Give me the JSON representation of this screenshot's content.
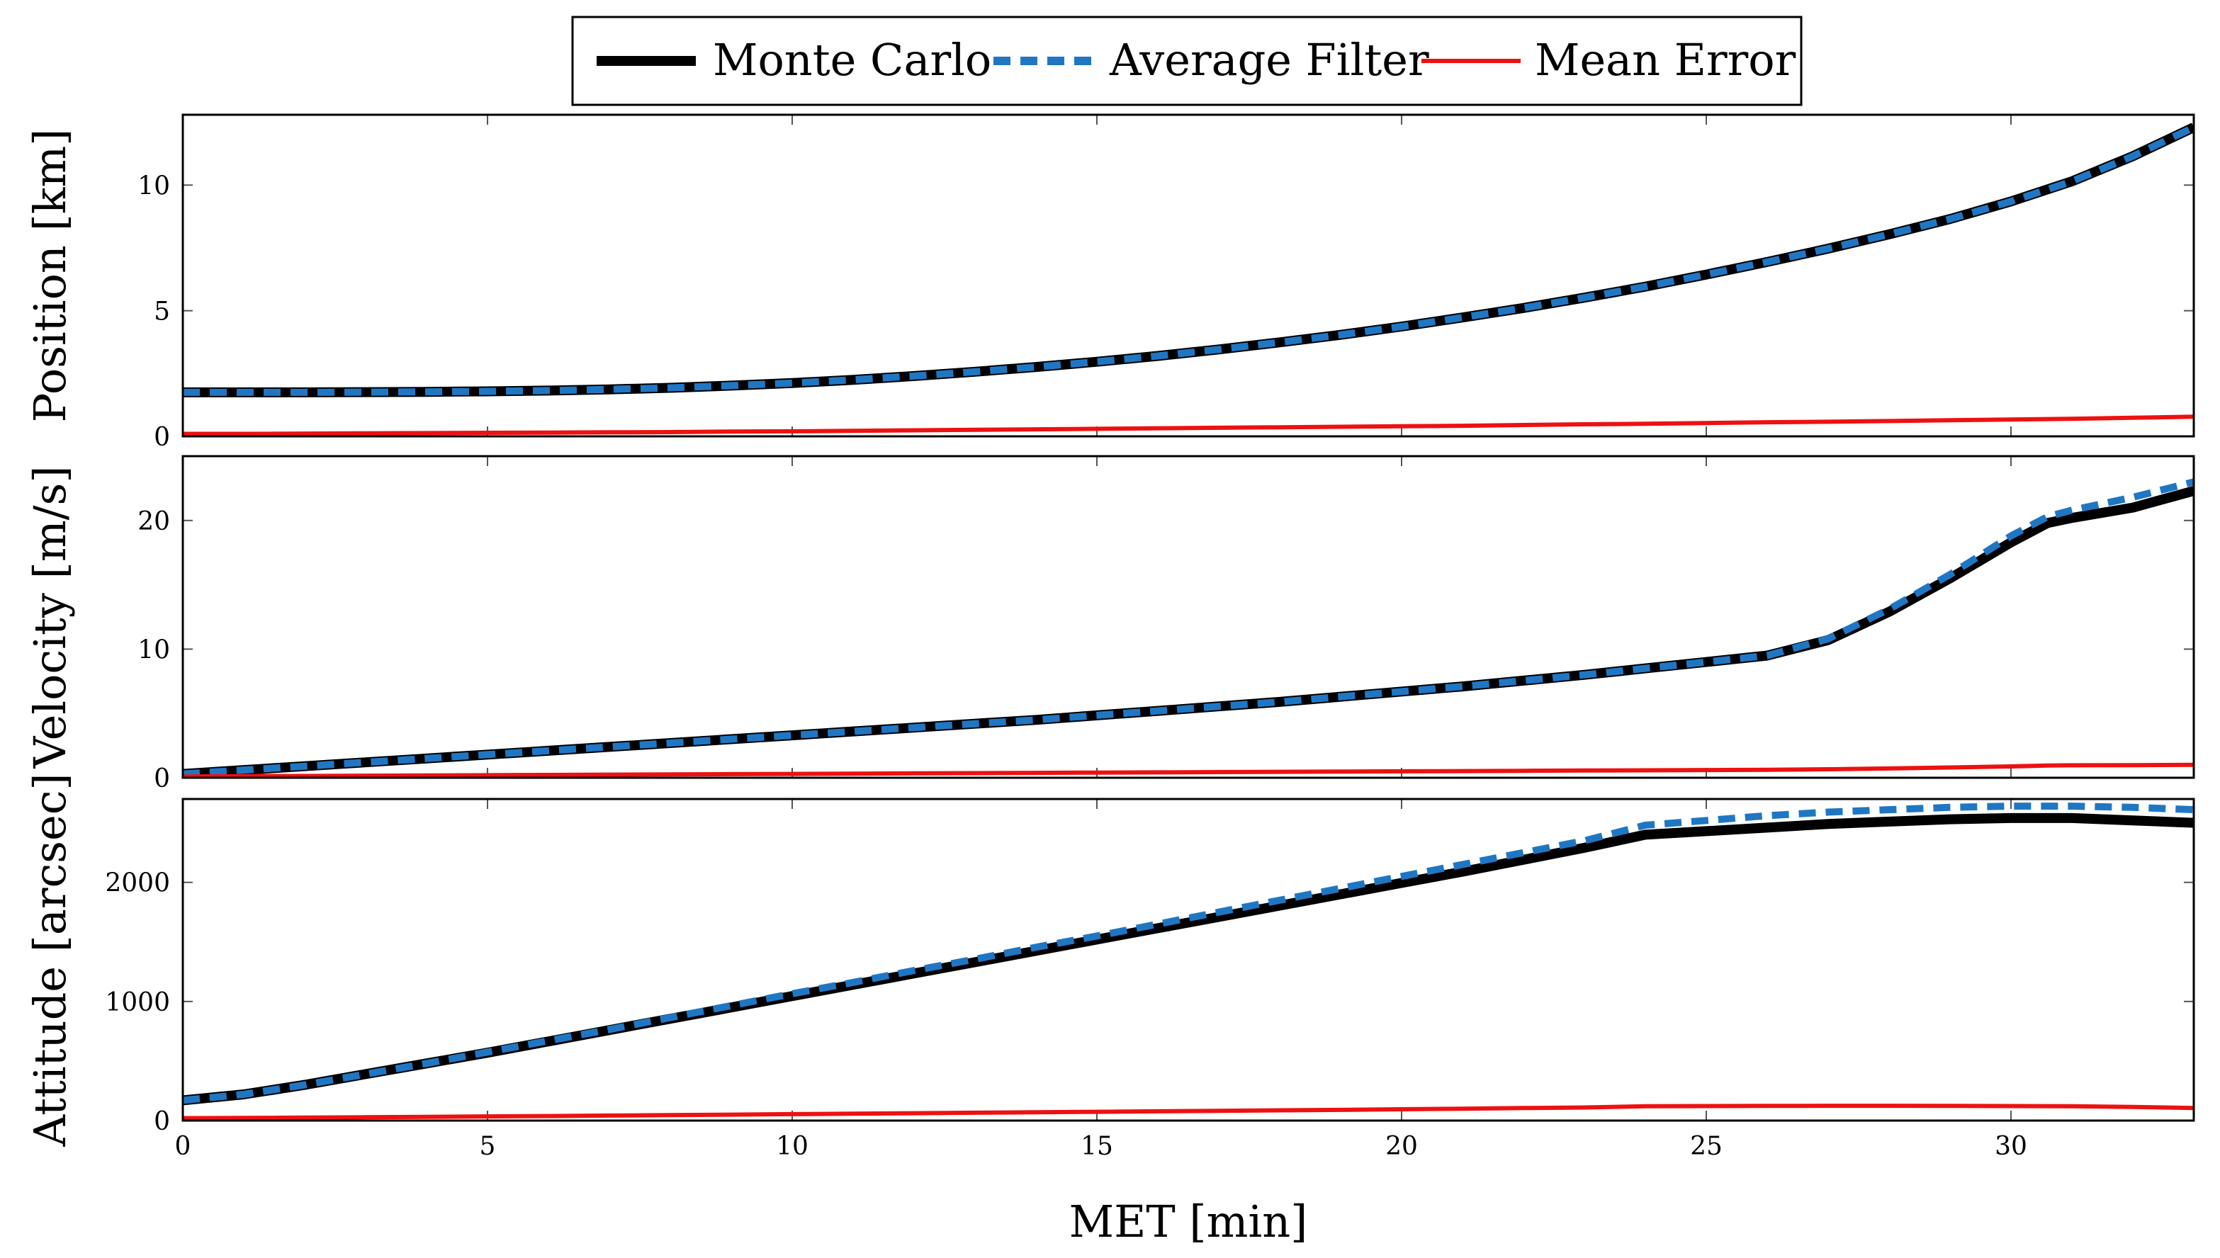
{
  "legend": {
    "entries": [
      {
        "label": "Monte Carlo",
        "color": "#000000",
        "style": "solid-thick"
      },
      {
        "label": "Average Filter",
        "color": "#1f77c4",
        "style": "dashed"
      },
      {
        "label": "Mean Error",
        "color": "#ee1111",
        "style": "solid"
      }
    ]
  },
  "xlabel": "MET [min]",
  "chart_data": [
    {
      "type": "line",
      "ylabel": "Position [km]",
      "xlim": [
        0,
        33
      ],
      "ylim": [
        0,
        12.8
      ],
      "xticks": [
        0,
        5,
        10,
        15,
        20,
        25,
        30
      ],
      "yticks": [
        0,
        5,
        10
      ],
      "x": [
        0,
        1,
        2,
        3,
        4,
        5,
        6,
        7,
        8,
        9,
        10,
        11,
        12,
        13,
        14,
        15,
        16,
        17,
        18,
        19,
        20,
        21,
        22,
        23,
        24,
        25,
        26,
        27,
        28,
        29,
        30,
        31,
        32,
        33
      ],
      "series": [
        {
          "name": "Monte Carlo",
          "values": [
            1.75,
            1.75,
            1.75,
            1.76,
            1.77,
            1.79,
            1.82,
            1.87,
            1.93,
            2.02,
            2.12,
            2.25,
            2.4,
            2.57,
            2.76,
            2.97,
            3.2,
            3.46,
            3.74,
            4.04,
            4.37,
            4.73,
            5.11,
            5.52,
            5.96,
            6.44,
            6.94,
            7.47,
            8.04,
            8.65,
            9.35,
            10.15,
            11.15,
            12.3
          ]
        },
        {
          "name": "Average Filter",
          "values": [
            1.75,
            1.75,
            1.75,
            1.76,
            1.77,
            1.79,
            1.82,
            1.87,
            1.93,
            2.02,
            2.12,
            2.25,
            2.4,
            2.57,
            2.76,
            2.97,
            3.2,
            3.46,
            3.74,
            4.04,
            4.37,
            4.73,
            5.11,
            5.52,
            5.96,
            6.44,
            6.94,
            7.47,
            8.04,
            8.65,
            9.35,
            10.15,
            11.15,
            12.3
          ]
        },
        {
          "name": "Mean Error",
          "values": [
            0.1,
            0.1,
            0.11,
            0.12,
            0.13,
            0.14,
            0.15,
            0.16,
            0.17,
            0.19,
            0.2,
            0.22,
            0.24,
            0.26,
            0.28,
            0.3,
            0.32,
            0.34,
            0.36,
            0.38,
            0.4,
            0.42,
            0.45,
            0.48,
            0.5,
            0.53,
            0.56,
            0.58,
            0.61,
            0.64,
            0.67,
            0.7,
            0.74,
            0.78
          ]
        }
      ]
    },
    {
      "type": "line",
      "ylabel": "Velocity [m/s]",
      "xlim": [
        0,
        33
      ],
      "ylim": [
        0,
        25
      ],
      "xticks": [
        0,
        5,
        10,
        15,
        20,
        25,
        30
      ],
      "yticks": [
        0,
        10,
        20
      ],
      "x": [
        0,
        1,
        2,
        3,
        4,
        5,
        6,
        7,
        8,
        9,
        10,
        11,
        12,
        13,
        14,
        15,
        16,
        17,
        18,
        19,
        20,
        21,
        22,
        23,
        24,
        25,
        26,
        27,
        28,
        29,
        30,
        30.6,
        31,
        32,
        33
      ],
      "series": [
        {
          "name": "Monte Carlo",
          "values": [
            0.3,
            0.6,
            0.9,
            1.2,
            1.5,
            1.8,
            2.1,
            2.4,
            2.7,
            3.0,
            3.3,
            3.6,
            3.9,
            4.2,
            4.5,
            4.85,
            5.2,
            5.55,
            5.9,
            6.3,
            6.7,
            7.1,
            7.55,
            8.0,
            8.5,
            9.0,
            9.5,
            10.7,
            12.9,
            15.5,
            18.3,
            19.8,
            20.2,
            21.0,
            22.3
          ]
        },
        {
          "name": "Average Filter",
          "values": [
            0.3,
            0.6,
            0.9,
            1.2,
            1.5,
            1.8,
            2.1,
            2.4,
            2.7,
            3.0,
            3.3,
            3.6,
            3.9,
            4.2,
            4.5,
            4.85,
            5.2,
            5.55,
            5.9,
            6.3,
            6.7,
            7.1,
            7.55,
            8.0,
            8.5,
            9.0,
            9.5,
            10.8,
            13.1,
            15.8,
            18.8,
            20.3,
            20.8,
            21.8,
            23.0
          ]
        },
        {
          "name": "Mean Error",
          "values": [
            0.1,
            0.12,
            0.14,
            0.16,
            0.18,
            0.2,
            0.22,
            0.24,
            0.26,
            0.28,
            0.3,
            0.32,
            0.34,
            0.36,
            0.38,
            0.4,
            0.42,
            0.44,
            0.46,
            0.48,
            0.5,
            0.52,
            0.54,
            0.56,
            0.58,
            0.6,
            0.62,
            0.66,
            0.72,
            0.8,
            0.88,
            0.95,
            0.97,
            0.98,
            1.0
          ]
        }
      ]
    },
    {
      "type": "line",
      "ylabel": "Attitude [arcsec]",
      "xlim": [
        0,
        33
      ],
      "ylim": [
        0,
        2700
      ],
      "xticks": [
        0,
        5,
        10,
        15,
        20,
        25,
        30
      ],
      "yticks": [
        0,
        1000,
        2000
      ],
      "x": [
        0,
        1,
        2,
        3,
        4,
        5,
        6,
        7,
        8,
        9,
        10,
        11,
        12,
        13,
        14,
        15,
        16,
        17,
        18,
        19,
        20,
        21,
        22,
        23,
        24,
        25,
        26,
        27,
        28,
        29,
        30,
        31,
        32,
        33
      ],
      "series": [
        {
          "name": "Monte Carlo",
          "values": [
            170,
            220,
            300,
            390,
            480,
            570,
            665,
            760,
            855,
            950,
            1045,
            1140,
            1235,
            1330,
            1425,
            1520,
            1615,
            1710,
            1805,
            1900,
            1995,
            2090,
            2190,
            2290,
            2400,
            2430,
            2460,
            2490,
            2510,
            2530,
            2540,
            2540,
            2520,
            2500
          ]
        },
        {
          "name": "Average Filter",
          "values": [
            170,
            220,
            300,
            390,
            480,
            575,
            670,
            765,
            865,
            965,
            1065,
            1160,
            1260,
            1355,
            1455,
            1550,
            1650,
            1750,
            1850,
            1950,
            2050,
            2150,
            2250,
            2350,
            2480,
            2520,
            2560,
            2590,
            2610,
            2630,
            2640,
            2640,
            2630,
            2610
          ]
        },
        {
          "name": "Mean Error",
          "values": [
            20,
            22,
            25,
            28,
            31,
            35,
            38,
            42,
            46,
            50,
            54,
            58,
            62,
            66,
            70,
            74,
            78,
            82,
            86,
            90,
            95,
            100,
            105,
            110,
            120,
            122,
            123,
            124,
            124,
            123,
            122,
            120,
            115,
            105
          ]
        }
      ]
    }
  ]
}
